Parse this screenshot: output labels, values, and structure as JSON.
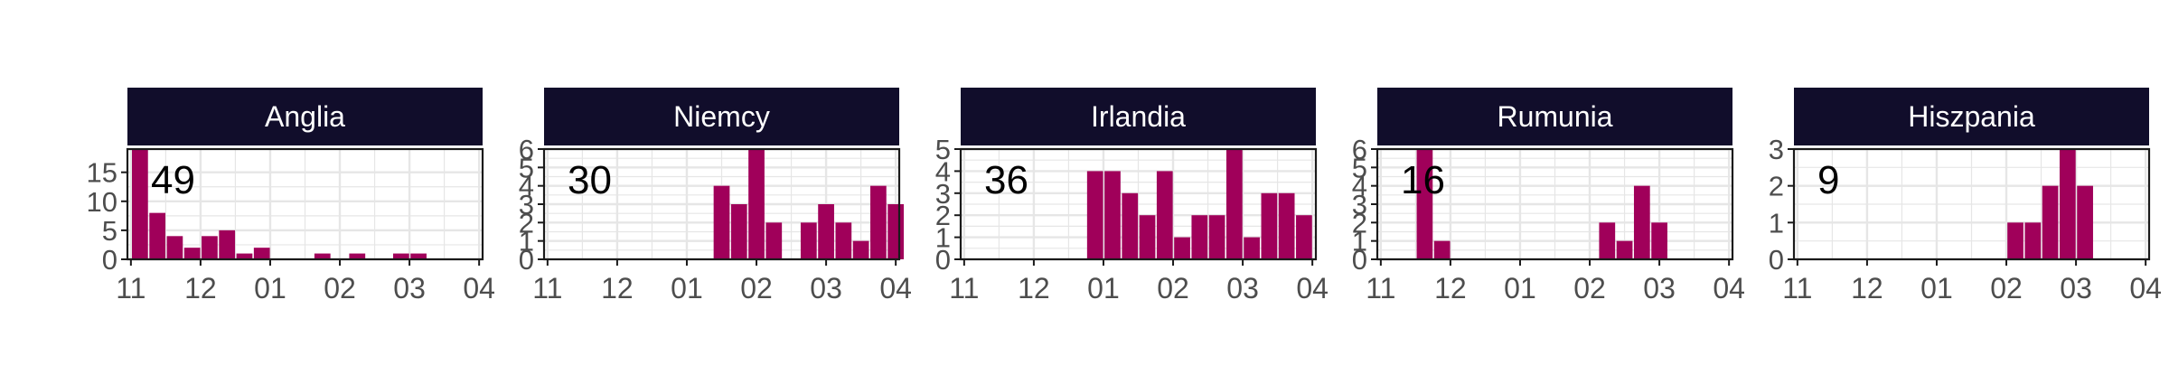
{
  "chart_data": {
    "type": "bar",
    "layout": "facets-in-one-row",
    "colors": {
      "bar": "#a0005a",
      "strip": "#110d2b",
      "strip_text": "#ffffff",
      "panel_border": "#1a1a1a",
      "grid": "#e6e6e6",
      "axis_text": "#4d4d4d",
      "total_text": "#000000"
    },
    "grid": true,
    "x_axis": {
      "ticks": [
        {
          "value": 0,
          "label": "11"
        },
        {
          "value": 1,
          "label": "12"
        },
        {
          "value": 2,
          "label": "01"
        },
        {
          "value": 3,
          "label": "02"
        },
        {
          "value": 4,
          "label": "03"
        },
        {
          "value": 5,
          "label": "04"
        }
      ],
      "xlim": [
        -0.05,
        5.05
      ]
    },
    "bar_width_months": 0.23,
    "facets": [
      {
        "name": "Anglia",
        "total": "49",
        "ylim": [
          0,
          19
        ],
        "y_ticks": [
          0,
          5,
          10,
          15
        ],
        "bars": [
          {
            "x": 0.13,
            "y": 19
          },
          {
            "x": 0.38,
            "y": 8
          },
          {
            "x": 0.63,
            "y": 4
          },
          {
            "x": 0.88,
            "y": 2
          },
          {
            "x": 1.13,
            "y": 4
          },
          {
            "x": 1.38,
            "y": 5
          },
          {
            "x": 1.63,
            "y": 1
          },
          {
            "x": 1.88,
            "y": 2
          },
          {
            "x": 2.75,
            "y": 1
          },
          {
            "x": 3.25,
            "y": 1
          },
          {
            "x": 3.88,
            "y": 1
          },
          {
            "x": 4.13,
            "y": 1
          }
        ]
      },
      {
        "name": "Niemcy",
        "total": "30",
        "ylim": [
          0,
          6
        ],
        "y_ticks": [
          0,
          1,
          2,
          3,
          4,
          5,
          6
        ],
        "bars": [
          {
            "x": 2.5,
            "y": 4
          },
          {
            "x": 2.75,
            "y": 3
          },
          {
            "x": 3.0,
            "y": 6
          },
          {
            "x": 3.25,
            "y": 2
          },
          {
            "x": 3.75,
            "y": 2
          },
          {
            "x": 4.0,
            "y": 3
          },
          {
            "x": 4.25,
            "y": 2
          },
          {
            "x": 4.5,
            "y": 1
          },
          {
            "x": 4.75,
            "y": 4
          },
          {
            "x": 5.0,
            "y": 3
          }
        ]
      },
      {
        "name": "Irlandia",
        "total": "36",
        "ylim": [
          0,
          5
        ],
        "y_ticks": [
          0,
          1,
          2,
          3,
          4,
          5
        ],
        "bars": [
          {
            "x": 1.88,
            "y": 4
          },
          {
            "x": 2.13,
            "y": 4
          },
          {
            "x": 2.38,
            "y": 3
          },
          {
            "x": 2.63,
            "y": 2
          },
          {
            "x": 2.88,
            "y": 4
          },
          {
            "x": 3.13,
            "y": 1
          },
          {
            "x": 3.38,
            "y": 2
          },
          {
            "x": 3.63,
            "y": 2
          },
          {
            "x": 3.88,
            "y": 5
          },
          {
            "x": 4.13,
            "y": 1
          },
          {
            "x": 4.38,
            "y": 3
          },
          {
            "x": 4.63,
            "y": 3
          },
          {
            "x": 4.88,
            "y": 2
          }
        ]
      },
      {
        "name": "Rumunia",
        "total": "16",
        "ylim": [
          0,
          6
        ],
        "y_ticks": [
          0,
          1,
          2,
          3,
          4,
          5,
          6
        ],
        "bars": [
          {
            "x": 0.63,
            "y": 6
          },
          {
            "x": 0.88,
            "y": 1
          },
          {
            "x": 3.25,
            "y": 2
          },
          {
            "x": 3.5,
            "y": 1
          },
          {
            "x": 3.75,
            "y": 4
          },
          {
            "x": 4.0,
            "y": 2
          }
        ]
      },
      {
        "name": "Hiszpania",
        "total": "9",
        "ylim": [
          0,
          3
        ],
        "y_ticks": [
          0,
          1,
          2,
          3
        ],
        "bars": [
          {
            "x": 3.13,
            "y": 1
          },
          {
            "x": 3.38,
            "y": 1
          },
          {
            "x": 3.63,
            "y": 2
          },
          {
            "x": 3.88,
            "y": 3
          },
          {
            "x": 4.13,
            "y": 2
          }
        ]
      }
    ]
  }
}
